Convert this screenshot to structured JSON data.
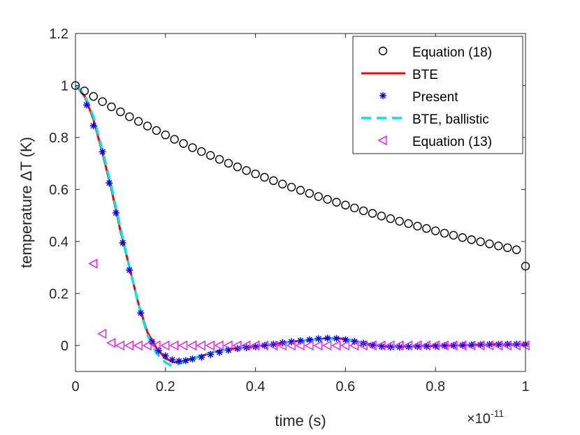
{
  "chart_data": {
    "type": "line",
    "xlabel": "time (s)",
    "ylabel": "temperature ΔT (K)",
    "x_multiplier": {
      "base": "×10",
      "exponent": "-11"
    },
    "xlim": [
      0,
      1
    ],
    "ylim": [
      -0.1,
      1.2
    ],
    "xticks": [
      0,
      0.2,
      0.4,
      0.6,
      0.8,
      1
    ],
    "xtick_labels": [
      "0",
      "0.2",
      "0.4",
      "0.6",
      "0.8",
      "1"
    ],
    "yticks": [
      0,
      0.2,
      0.4,
      0.6,
      0.8,
      1,
      1.2
    ],
    "ytick_labels": [
      "0",
      "0.2",
      "0.4",
      "0.6",
      "0.8",
      "1",
      "1.2"
    ],
    "legend_position": "top-right",
    "series": [
      {
        "name": "Equation (18)",
        "style": "circle-markers",
        "color": "#000000",
        "x": [
          0,
          0.02,
          0.04,
          0.06,
          0.08,
          0.1,
          0.12,
          0.14,
          0.16,
          0.18,
          0.2,
          0.22,
          0.24,
          0.26,
          0.28,
          0.3,
          0.32,
          0.34,
          0.36,
          0.38,
          0.4,
          0.42,
          0.44,
          0.46,
          0.48,
          0.5,
          0.52,
          0.54,
          0.56,
          0.58,
          0.6,
          0.62,
          0.64,
          0.66,
          0.68,
          0.7,
          0.72,
          0.74,
          0.76,
          0.78,
          0.8,
          0.82,
          0.84,
          0.86,
          0.88,
          0.9,
          0.92,
          0.94,
          0.96,
          0.98,
          1
        ],
        "values": [
          1,
          0.979,
          0.958,
          0.938,
          0.918,
          0.899,
          0.88,
          0.862,
          0.844,
          0.827,
          0.81,
          0.793,
          0.777,
          0.761,
          0.746,
          0.731,
          0.716,
          0.701,
          0.687,
          0.673,
          0.66,
          0.647,
          0.634,
          0.621,
          0.609,
          0.597,
          0.585,
          0.573,
          0.562,
          0.551,
          0.54,
          0.529,
          0.518,
          0.508,
          0.498,
          0.488,
          0.478,
          0.469,
          0.459,
          0.45,
          0.441,
          0.432,
          0.424,
          0.415,
          0.407,
          0.399,
          0.391,
          0.383,
          0.376,
          0.368,
          0.305
        ]
      },
      {
        "name": "BTE",
        "style": "solid-line",
        "color": "#ff0000",
        "x": [
          0,
          0.02,
          0.04,
          0.06,
          0.08,
          0.1,
          0.12,
          0.14,
          0.16,
          0.18,
          0.2,
          0.22,
          0.24,
          0.26,
          0.28,
          0.3,
          0.32,
          0.34,
          0.36,
          0.38,
          0.4,
          0.42,
          0.44,
          0.46,
          0.48,
          0.5,
          0.52,
          0.54,
          0.56,
          0.58,
          0.6,
          0.62,
          0.64,
          0.66,
          0.68,
          0.7,
          0.72,
          0.74,
          0.76,
          0.78,
          0.8,
          0.82,
          0.84,
          0.86,
          0.88,
          0.9,
          0.92,
          0.94,
          0.96,
          0.98,
          1
        ],
        "values": [
          1,
          0.96,
          0.87,
          0.74,
          0.6,
          0.44,
          0.3,
          0.16,
          0.05,
          -0.01,
          -0.05,
          -0.065,
          -0.06,
          -0.05,
          -0.04,
          -0.03,
          -0.02,
          -0.015,
          -0.01,
          -0.008,
          -0.005,
          0,
          0.005,
          0.01,
          0.015,
          0.018,
          0.022,
          0.025,
          0.028,
          0.028,
          0.025,
          0.018,
          0.01,
          0.002,
          -0.003,
          -0.005,
          -0.006,
          -0.005,
          -0.004,
          -0.003,
          -0.002,
          -0.001,
          0,
          0.001,
          0.002,
          0.003,
          0.004,
          0.005,
          0.005,
          0.005,
          0.005
        ]
      },
      {
        "name": "Present",
        "style": "star-markers",
        "color": "#0000ff",
        "x": [
          0.025,
          0.04,
          0.06,
          0.075,
          0.09,
          0.105,
          0.12,
          0.145,
          0.17,
          0.185,
          0.2,
          0.215,
          0.23,
          0.245,
          0.26,
          0.28,
          0.3,
          0.32,
          0.34,
          0.36,
          0.38,
          0.4,
          0.42,
          0.44,
          0.46,
          0.48,
          0.5,
          0.52,
          0.54,
          0.56,
          0.58,
          0.6,
          0.62,
          0.64,
          0.66,
          0.68,
          0.7,
          0.72,
          0.74,
          0.76,
          0.78,
          0.8,
          0.82,
          0.84,
          0.86,
          0.88,
          0.9,
          0.92,
          0.94,
          0.96,
          0.98,
          1
        ],
        "values": [
          0.925,
          0.845,
          0.745,
          0.625,
          0.51,
          0.395,
          0.29,
          0.125,
          0.015,
          -0.02,
          -0.04,
          -0.055,
          -0.06,
          -0.058,
          -0.052,
          -0.045,
          -0.035,
          -0.026,
          -0.018,
          -0.012,
          -0.008,
          -0.005,
          0,
          0.005,
          0.01,
          0.014,
          0.018,
          0.022,
          0.026,
          0.028,
          0.027,
          0.022,
          0.015,
          0.008,
          0.001,
          -0.004,
          -0.006,
          -0.006,
          -0.005,
          -0.004,
          -0.003,
          -0.002,
          -0.001,
          0,
          0.001,
          0.002,
          0.003,
          0.004,
          0.004,
          0.005,
          0.005,
          0.005
        ]
      },
      {
        "name": "BTE, ballistic",
        "style": "dashed-line",
        "color": "#00e5ee",
        "x": [
          0,
          0.02,
          0.04,
          0.06,
          0.08,
          0.1,
          0.12,
          0.14,
          0.16,
          0.18,
          0.2,
          0.21,
          0.22,
          0.24,
          0.26,
          0.28,
          0.3,
          0.32,
          0.34,
          0.36,
          0.38,
          0.4,
          0.42,
          0.44,
          0.46,
          0.48,
          0.5,
          0.52,
          0.54,
          0.56,
          0.58,
          0.6,
          0.62,
          0.64,
          0.66,
          0.68,
          0.7,
          0.72,
          0.74,
          0.76,
          0.78,
          0.8,
          0.82,
          0.84,
          0.86,
          0.88,
          0.9,
          0.92,
          0.94,
          0.96,
          0.98,
          1
        ],
        "values": [
          1,
          0.965,
          0.88,
          0.75,
          0.61,
          0.45,
          0.3,
          0.16,
          0.04,
          -0.03,
          -0.065,
          -0.075,
          -0.075,
          -0.065,
          -0.05,
          -0.038,
          -0.028,
          -0.02,
          -0.014,
          -0.01,
          -0.006,
          -0.003,
          0,
          0.005,
          0.01,
          0.014,
          0.018,
          0.021,
          0.024,
          0.026,
          0.026,
          0.023,
          0.017,
          0.01,
          0.003,
          -0.002,
          -0.005,
          -0.006,
          -0.005,
          -0.004,
          -0.003,
          -0.002,
          -0.001,
          0,
          0.001,
          0.002,
          0.003,
          0.004,
          0.004,
          0.005,
          0.005,
          0.005
        ]
      },
      {
        "name": "Equation (13)",
        "style": "triangle-left-markers",
        "color": "#ff00ff",
        "x": [
          0.04,
          0.06,
          0.08,
          0.1,
          0.12,
          0.14,
          0.16,
          0.18,
          0.2,
          0.22,
          0.24,
          0.26,
          0.28,
          0.3,
          0.32,
          0.34,
          0.36,
          0.38,
          0.4,
          0.42,
          0.44,
          0.46,
          0.48,
          0.5,
          0.52,
          0.54,
          0.56,
          0.58,
          0.6,
          0.62,
          0.64,
          0.66,
          0.68,
          0.7,
          0.72,
          0.74,
          0.76,
          0.78,
          0.8,
          0.82,
          0.84,
          0.86,
          0.88,
          0.9,
          0.92,
          0.94,
          0.96,
          0.98,
          1
        ],
        "values": [
          0.315,
          0.045,
          0.01,
          0,
          0,
          0,
          0,
          0,
          0,
          0,
          0,
          0,
          0,
          0,
          0,
          0,
          0,
          0,
          0,
          0,
          0,
          0,
          0,
          0,
          0,
          0,
          0,
          0,
          0,
          0,
          0,
          0,
          0,
          0,
          0,
          0,
          0,
          0,
          0,
          0,
          0,
          0,
          0,
          0,
          0,
          0,
          0,
          0,
          0
        ]
      }
    ]
  }
}
